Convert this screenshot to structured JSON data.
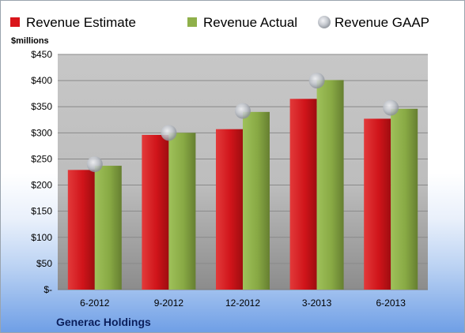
{
  "chart_data": {
    "type": "bar",
    "unit_label": "$millions",
    "company": "Generac Holdings",
    "categories": [
      "6-2012",
      "9-2012",
      "12-2012",
      "3-2013",
      "6-2013"
    ],
    "series": [
      {
        "name": "Revenue Estimate",
        "kind": "bar",
        "color": "#d9151b",
        "values": [
          229,
          296,
          307,
          365,
          327
        ]
      },
      {
        "name": "Revenue Actual",
        "kind": "bar",
        "color": "#8fb04a",
        "values": [
          237,
          300,
          340,
          401,
          346
        ]
      },
      {
        "name": "Revenue GAAP",
        "kind": "marker",
        "color": "#b8bcc4",
        "values": [
          240,
          300,
          342,
          400,
          348
        ]
      }
    ],
    "ylim": [
      0,
      450
    ],
    "yticks": [
      {
        "value": 0,
        "label": "$-"
      },
      {
        "value": 50,
        "label": "$50"
      },
      {
        "value": 100,
        "label": "$100"
      },
      {
        "value": 150,
        "label": "$150"
      },
      {
        "value": 200,
        "label": "$200"
      },
      {
        "value": 250,
        "label": "$250"
      },
      {
        "value": 300,
        "label": "$300"
      },
      {
        "value": 350,
        "label": "$350"
      },
      {
        "value": 400,
        "label": "$400"
      },
      {
        "value": 450,
        "label": "$450"
      }
    ],
    "grid": true,
    "legend_position": "top"
  }
}
